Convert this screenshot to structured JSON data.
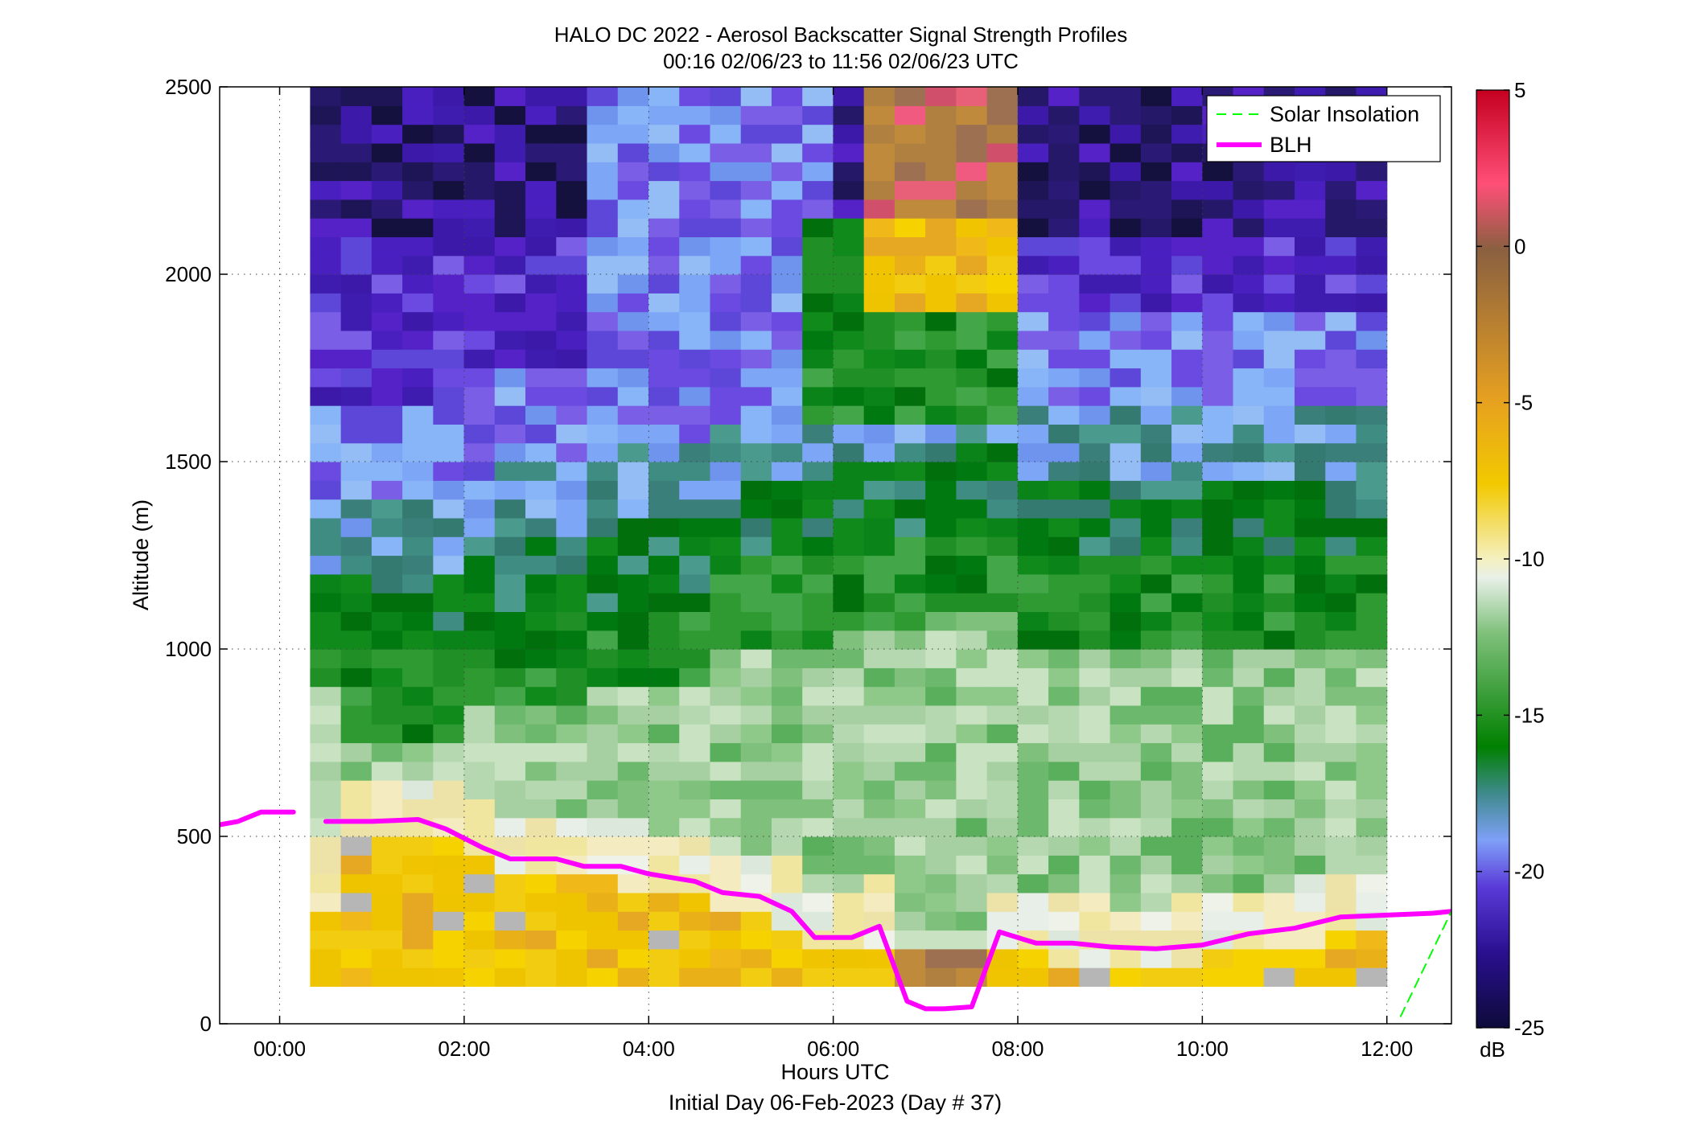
{
  "chart_data": {
    "type": "heatmap",
    "title": "HALO DC 2022 - Aerosol Backscatter Signal Strength Profiles",
    "subtitle": "00:16 02/06/23 to 11:56 02/06/23  UTC",
    "xlabel": "Hours UTC",
    "xlabel2": "Initial Day 06-Feb-2023 (Day # 37)",
    "ylabel": "Altitude (m)",
    "xlim": [
      -0.65,
      12.7
    ],
    "ylim": [
      0,
      2500
    ],
    "x_ticks": [
      0,
      2,
      4,
      6,
      8,
      10,
      12
    ],
    "x_tick_labels": [
      "00:00",
      "02:00",
      "04:00",
      "06:00",
      "08:00",
      "10:00",
      "12:00"
    ],
    "y_ticks": [
      0,
      500,
      1000,
      1500,
      2000,
      2500
    ],
    "y_tick_labels": [
      "0",
      "500",
      "1000",
      "1500",
      "2000",
      "2500"
    ],
    "grid": true,
    "legend_position": "top-right",
    "colorbar": {
      "unit": "dB",
      "range": [
        -25,
        5
      ],
      "ticks": [
        5,
        0,
        -5,
        -10,
        -15,
        -20,
        -25
      ],
      "tick_labels": [
        "5",
        "0",
        "-5",
        "-10",
        "-15",
        "-20",
        "-25"
      ]
    },
    "heatmap": {
      "x_start": 0.33,
      "x_end": 12.0,
      "columns": 35,
      "altitude_min": 100,
      "altitude_max": 2500
    },
    "series": [
      {
        "name": "BLH",
        "color": "#ff00ff",
        "segments": [
          {
            "x": [
              -0.67,
              -0.45,
              -0.2,
              0.15
            ],
            "y": [
              530,
              540,
              565,
              565
            ]
          },
          {
            "x": [
              0.5,
              1.0,
              1.5,
              1.8,
              2.2,
              2.5,
              3.0,
              3.3,
              3.7,
              4.0,
              4.5,
              4.8,
              5.2,
              5.55,
              5.8,
              6.2,
              6.5,
              6.8,
              7.0,
              7.2,
              7.5,
              7.8,
              8.2,
              8.6,
              9.0,
              9.5,
              10.0,
              10.5,
              11.0,
              11.5,
              12.0,
              12.5,
              12.7
            ],
            "y": [
              540,
              540,
              545,
              520,
              470,
              440,
              440,
              420,
              420,
              400,
              380,
              350,
              340,
              300,
              230,
              230,
              260,
              60,
              40,
              40,
              45,
              245,
              215,
              215,
              205,
              200,
              210,
              240,
              255,
              285,
              290,
              295,
              300
            ]
          }
        ]
      },
      {
        "name": "Solar Insolation",
        "color": "#00ff00",
        "dashed": true,
        "segments": [
          {
            "x": [
              12.15,
              12.7
            ],
            "y": [
              20,
              300
            ]
          }
        ]
      }
    ]
  }
}
